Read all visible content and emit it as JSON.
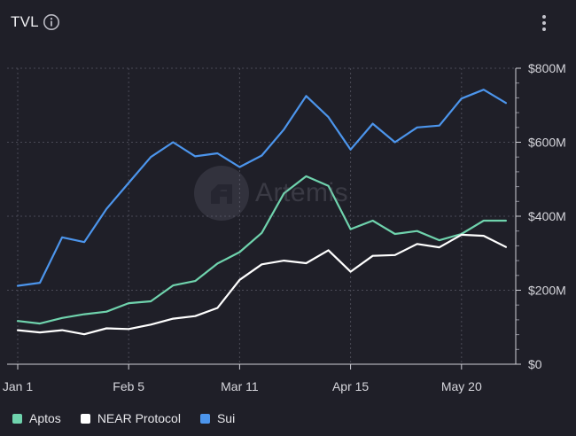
{
  "header": {
    "title": "TVL",
    "info_icon": "info-circle-icon",
    "more_icon": "more-vertical-icon"
  },
  "watermark": {
    "text": "Artemis"
  },
  "legend": [
    {
      "name": "Aptos",
      "color": "#6fd3ad"
    },
    {
      "name": "NEAR Protocol",
      "color": "#ffffff"
    },
    {
      "name": "Sui",
      "color": "#4c95ec"
    }
  ],
  "chart_data": {
    "type": "line",
    "x_ticks": [
      "Jan 1",
      "Feb 5",
      "Mar 11",
      "Apr 15",
      "May 20"
    ],
    "y_ticks": [
      "$0",
      "$200M",
      "$400M",
      "$600M",
      "$800M"
    ],
    "y_tick_values": [
      0,
      200,
      400,
      600,
      800
    ],
    "ylim": [
      0,
      800
    ],
    "y_unit": "$M",
    "grid": true,
    "legend_position": "bottom-left",
    "x_dates": [
      "Jan 1",
      "Jan 8",
      "Jan 15",
      "Jan 22",
      "Jan 29",
      "Feb 5",
      "Feb 12",
      "Feb 19",
      "Feb 26",
      "Mar 4",
      "Mar 11",
      "Mar 18",
      "Mar 25",
      "Apr 1",
      "Apr 8",
      "Apr 15",
      "Apr 22",
      "Apr 29",
      "May 6",
      "May 13",
      "May 20",
      "May 27",
      "Jun 3"
    ],
    "series": [
      {
        "name": "Aptos",
        "color": "#6fd3ad",
        "values": [
          117,
          110,
          125,
          135,
          142,
          165,
          170,
          213,
          225,
          272,
          303,
          355,
          462,
          508,
          482,
          365,
          388,
          352,
          360,
          335,
          352,
          388,
          388
        ]
      },
      {
        "name": "NEAR Protocol",
        "color": "#ffffff",
        "values": [
          92,
          86,
          92,
          81,
          97,
          95,
          107,
          123,
          130,
          152,
          228,
          270,
          280,
          273,
          308,
          250,
          293,
          295,
          325,
          316,
          350,
          347,
          317
        ]
      },
      {
        "name": "Sui",
        "color": "#4c95ec",
        "values": [
          212,
          220,
          343,
          330,
          420,
          490,
          560,
          600,
          562,
          570,
          533,
          564,
          635,
          725,
          668,
          580,
          650,
          600,
          640,
          645,
          718,
          742,
          706
        ]
      }
    ]
  }
}
